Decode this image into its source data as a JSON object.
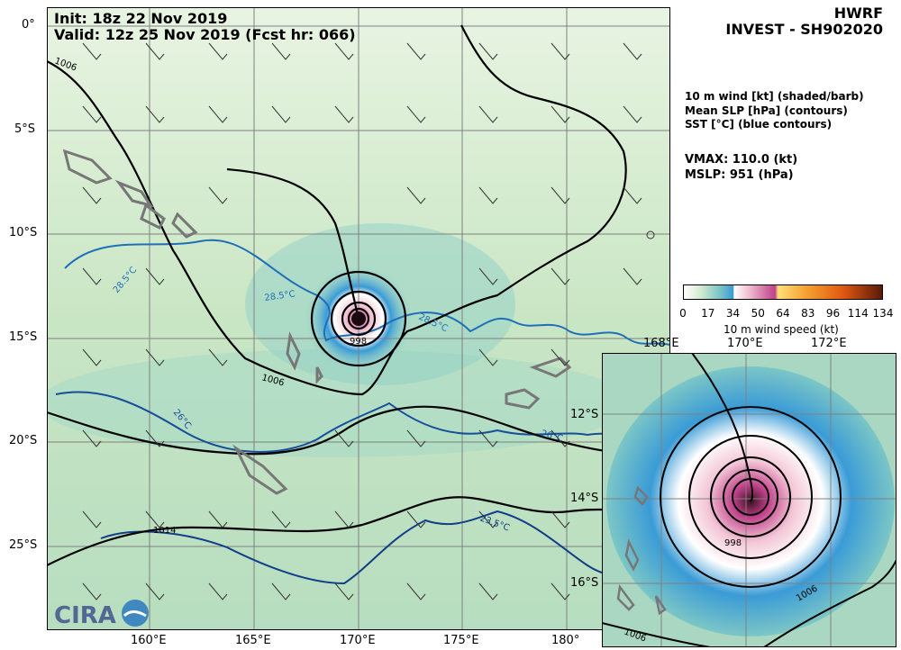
{
  "header": {
    "init_label": "Init:  18z 22 Nov 2019",
    "valid_label": "Valid: 12z 25 Nov 2019 (Fcst hr: 066)",
    "model": "HWRF",
    "storm": "INVEST - SH902020"
  },
  "legend": {
    "line1": "10 m wind [kt] (shaded/barb)",
    "line2": "Mean SLP [hPa] (contours)",
    "line3": "SST [°C] (blue contours)"
  },
  "stats": {
    "vmax": "VMAX: 110.0 (kt)",
    "mslp": "MSLP:  951 (hPa)"
  },
  "colorbar": {
    "title": "10 m wind speed (kt)",
    "ticks": [
      "0",
      "17",
      "34",
      "50",
      "64",
      "83",
      "96",
      "114",
      "134"
    ],
    "stops": [
      "#ffffff",
      "#d6ecd2",
      "#7cc6c6",
      "#3a9bd6",
      "#ffffff",
      "#f3c6d6",
      "#c0408a",
      "#ffe07a",
      "#f5a030",
      "#e05a10",
      "#5a1a08"
    ]
  },
  "main_map": {
    "lat_labels": [
      "0°",
      "5°S",
      "10°S",
      "15°S",
      "20°S",
      "25°S"
    ],
    "lon_labels": [
      "160°E",
      "165°E",
      "170°E",
      "175°E",
      "180°"
    ],
    "contour_labels": [
      "1006",
      "1006",
      "998",
      "1014"
    ],
    "sst_labels": [
      "28.5°C",
      "28.5°C",
      "28.5°C",
      "26°C",
      "26°C",
      "23.5°C"
    ],
    "storm_center": {
      "lat": -14.0,
      "lon": 170.0
    }
  },
  "inset_map": {
    "lon_labels": [
      "168°E",
      "170°E",
      "172°E"
    ],
    "lat_labels": [
      "12°S",
      "14°S",
      "16°S"
    ],
    "contour_labels": [
      "998",
      "1006",
      "1006"
    ]
  },
  "logo": {
    "text": "CIRA"
  },
  "colors": {
    "land_outline": "#777777",
    "slp": "#000000",
    "sst": "#1f5fa8",
    "grid": "#808080"
  }
}
